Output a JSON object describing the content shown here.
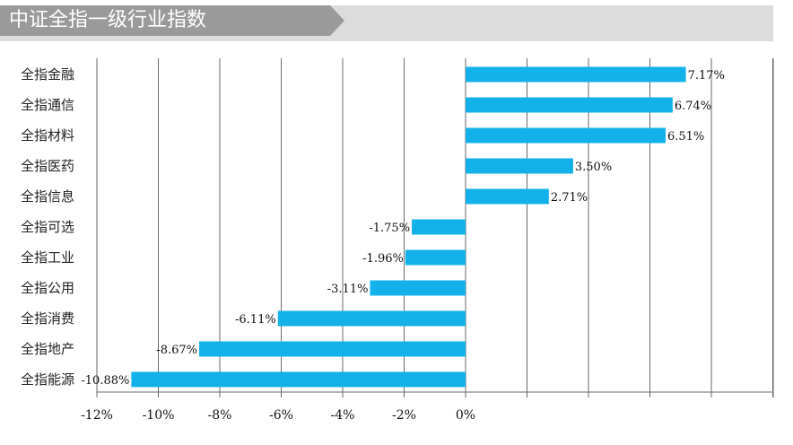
{
  "header": {
    "title": "中证全指一级行业指数"
  },
  "colors": {
    "bar": "#13b1e9",
    "header_dark": "#9a9a9a",
    "header_light": "#dcdcdc",
    "grid": "#6a6a6a"
  },
  "chart_data": {
    "type": "bar",
    "orientation": "horizontal",
    "title": "中证全指一级行业指数",
    "categories": [
      "全指金融",
      "全指通信",
      "全指材料",
      "全指医药",
      "全指信息",
      "全指可选",
      "全指工业",
      "全指公用",
      "全指消费",
      "全指地产",
      "全指能源"
    ],
    "values": [
      7.17,
      6.74,
      6.51,
      3.5,
      2.71,
      -1.75,
      -1.96,
      -3.11,
      -6.11,
      -8.67,
      -10.88
    ],
    "value_labels": [
      "7.17%",
      "6.74%",
      "6.51%",
      "3.50%",
      "2.71%",
      "-1.75%",
      "-1.96%",
      "-3.11%",
      "-6.11%",
      "-8.67%",
      "-10.88%"
    ],
    "x_ticks": [
      -12,
      -10,
      -8,
      -6,
      -4,
      -2,
      0
    ],
    "x_tick_labels": [
      "-12%",
      "-10%",
      "-8%",
      "-6%",
      "-4%",
      "-2%",
      "0%"
    ],
    "xlim": [
      -12,
      10
    ],
    "grid": true,
    "legend": "none"
  }
}
